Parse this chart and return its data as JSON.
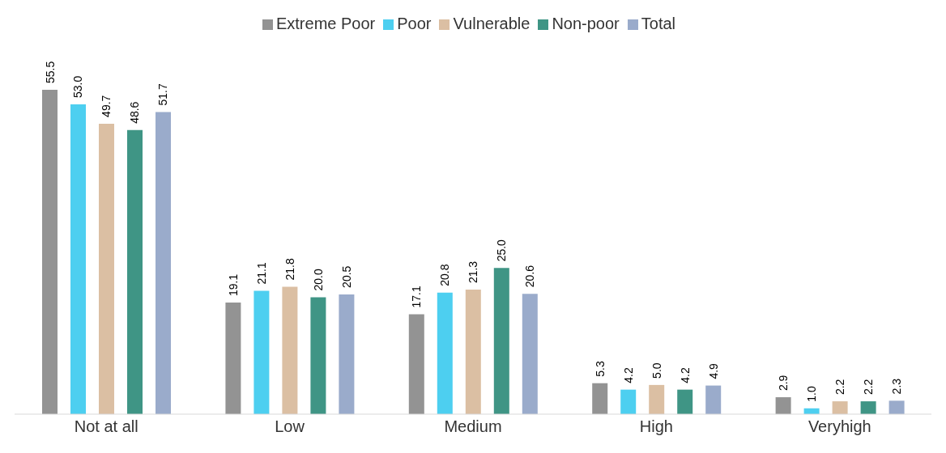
{
  "chart_data": {
    "type": "bar",
    "categories": [
      "Not at all",
      "Low",
      "Medium",
      "High",
      "Veryhigh"
    ],
    "series": [
      {
        "name": "Extreme Poor",
        "color": "#939393",
        "values": [
          55.5,
          19.1,
          17.1,
          5.3,
          2.9
        ],
        "value_labels": [
          "55.5",
          "19.1",
          "17.1",
          "5.3",
          "2.9"
        ]
      },
      {
        "name": "Poor",
        "color": "#4dcff0",
        "values": [
          53.0,
          21.1,
          20.8,
          4.2,
          1.0
        ],
        "value_labels": [
          "53.0",
          "21.1",
          "20.8",
          "4.2",
          "1.0"
        ]
      },
      {
        "name": "Vulnerable",
        "color": "#dbbfa3",
        "values": [
          49.7,
          21.8,
          21.3,
          5.0,
          2.2
        ],
        "value_labels": [
          "49.7",
          "21.8",
          "21.3",
          "5.0",
          "2.2"
        ]
      },
      {
        "name": "Non-poor",
        "color": "#3f9585",
        "values": [
          48.6,
          20.0,
          25.0,
          4.2,
          2.2
        ],
        "value_labels": [
          "48.6",
          "20.0",
          "25.0",
          "4.2",
          "2.2"
        ]
      },
      {
        "name": "Total",
        "color": "#9aabcb",
        "values": [
          51.7,
          20.5,
          20.6,
          4.9,
          2.3
        ],
        "value_labels": [
          "51.7",
          "20.5",
          "20.6",
          "4.9",
          "2.3"
        ]
      }
    ],
    "legend": "top"
  }
}
